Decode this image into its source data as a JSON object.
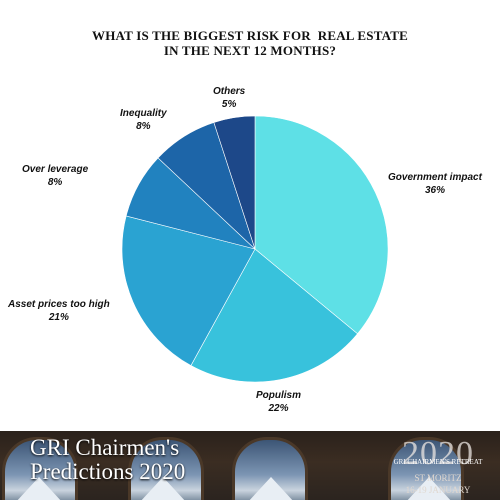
{
  "chart_data": {
    "type": "pie",
    "title": [
      "WHAT IS THE BIGGEST RISK FOR  REAL ESTATE",
      "IN THE NEXT 12 MONTHS?"
    ],
    "start_angle_deg": 0,
    "direction": "clockwise",
    "slices": [
      {
        "label": "Government impact",
        "value": 36,
        "value_label": "36%",
        "color": "#5ee0e6"
      },
      {
        "label": "Populism",
        "value": 22,
        "value_label": "22%",
        "color": "#38c2dc"
      },
      {
        "label": "Asset prices too high",
        "value": 21,
        "value_label": "21%",
        "color": "#2aa3d2"
      },
      {
        "label": "Over leverage",
        "value": 8,
        "value_label": "8%",
        "color": "#2182bf"
      },
      {
        "label": "Inequality",
        "value": 8,
        "value_label": "8%",
        "color": "#1d65a8"
      },
      {
        "label": "Others",
        "value": 5,
        "value_label": "5%",
        "color": "#1d4889"
      }
    ]
  },
  "banner": {
    "title_lines": [
      "GRI Chairmen's",
      "Predictions 2020"
    ],
    "retreat": {
      "year": "2020",
      "name": "GRI CHAIRMEN'S RETREAT",
      "place": "ST MORITZ",
      "dates": "16-19 JANUARY"
    }
  }
}
